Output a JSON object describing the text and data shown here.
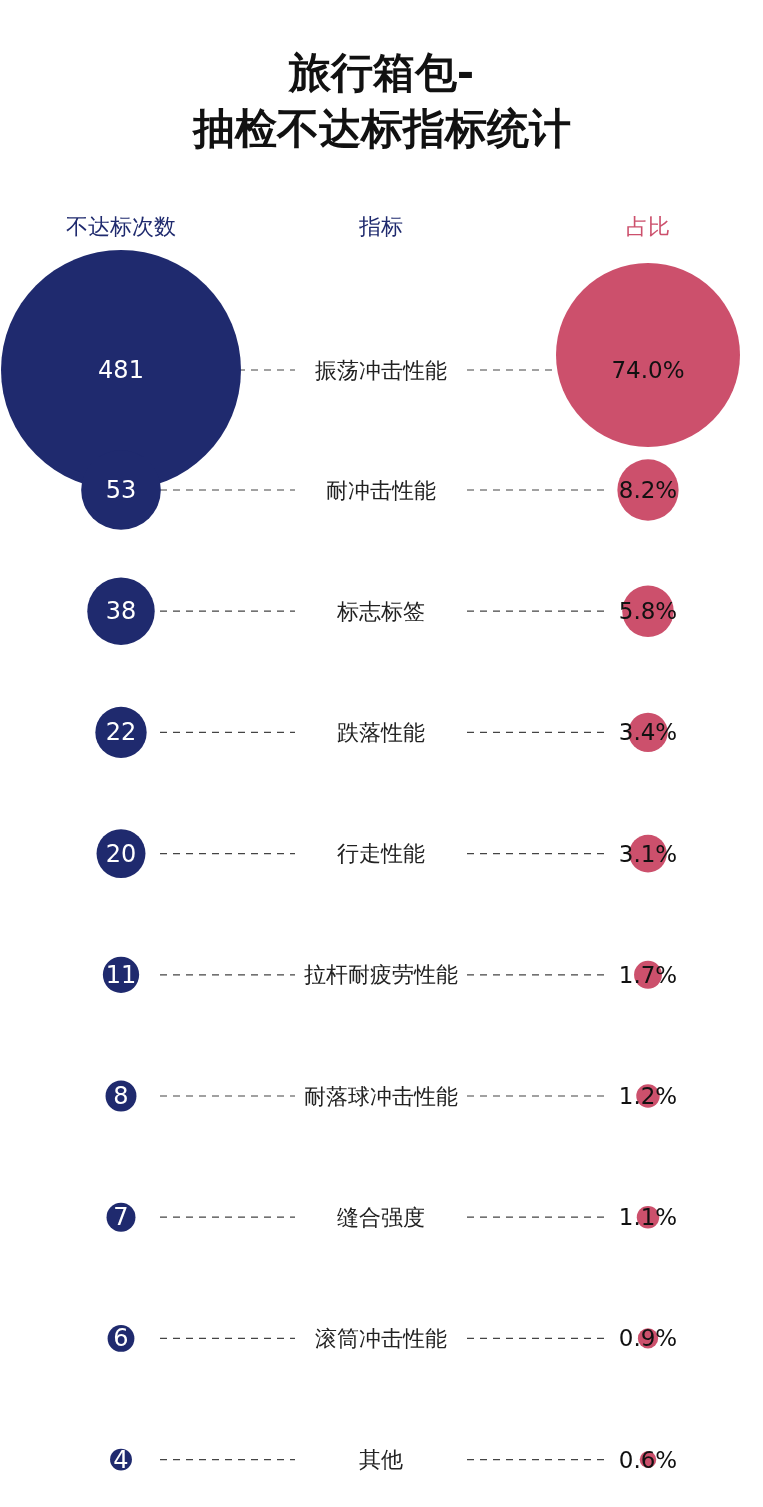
{
  "chart_data": {
    "type": "other",
    "title": "旅行箱包-",
    "subtitle": "抽检不达标指标统计",
    "annotations": [
      "指标"
    ],
    "categories": [
      "振荡冲击性能",
      "耐冲击性能",
      "标志标签",
      "跌落性能",
      "行走性能",
      "拉杆耐疲劳性能",
      "耐落球冲击性能",
      "缝合强度",
      "滚筒冲击性能",
      "其他"
    ],
    "series": [
      {
        "name": "不达标次数",
        "color": "#1f2a6e",
        "values": [
          481,
          53,
          38,
          22,
          20,
          11,
          8,
          7,
          6,
          4
        ],
        "value_labels": [
          "481",
          "53",
          "38",
          "22",
          "20",
          "11",
          "8",
          "7",
          "6",
          "4"
        ]
      },
      {
        "name": "占比",
        "color": "#cc506c",
        "values": [
          74.0,
          8.2,
          5.8,
          3.4,
          3.1,
          1.7,
          1.2,
          1.1,
          0.9,
          0.6
        ],
        "value_labels": [
          "74.0%",
          "8.2%",
          "5.8%",
          "3.4%",
          "3.1%",
          "1.7%",
          "1.2%",
          "1.1%",
          "0.9%",
          "0.6%"
        ]
      }
    ]
  }
}
